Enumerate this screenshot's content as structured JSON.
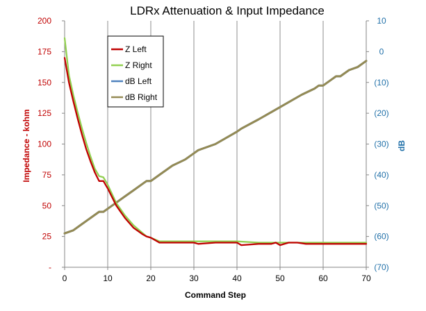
{
  "chart_data": {
    "type": "line",
    "title": "LDRx Attenuation & Input Impedance",
    "xlabel": "Command Step",
    "ylabel_left": "Impedance - kohm",
    "ylabel_right": "dB",
    "xlim": [
      0,
      70
    ],
    "ylim_left": [
      0,
      200
    ],
    "ylim_right": [
      -70,
      10
    ],
    "x_ticks": [
      "0",
      "10",
      "20",
      "30",
      "40",
      "50",
      "60",
      "70"
    ],
    "y_left_ticks": [
      "-",
      "25",
      "50",
      "75",
      "100",
      "125",
      "150",
      "175",
      "200"
    ],
    "y_right_ticks": [
      "(70)",
      "(60)",
      "(50)",
      "(40)",
      "(30)",
      "(20)",
      "(10)",
      "0",
      "10"
    ],
    "grid": "vertical",
    "legend_position": "top-left",
    "colors": {
      "z_left": "#c00000",
      "z_right": "#92d050",
      "db_left": "#4f81bd",
      "db_right": "#948a54",
      "left_axis": "#c00000",
      "right_axis": "#1f6fa8"
    },
    "series": [
      {
        "name": "Z Left",
        "axis": "left",
        "x": [
          0,
          1,
          2,
          3,
          4,
          5,
          6,
          7,
          8,
          9,
          10,
          12,
          14,
          16,
          18,
          19,
          20,
          22,
          25,
          30,
          31,
          35,
          40,
          41,
          45,
          48,
          49,
          50,
          52,
          54,
          56,
          58,
          60,
          65,
          68,
          70
        ],
        "values": [
          170,
          150,
          135,
          121,
          108,
          96,
          86,
          77,
          70,
          70,
          64,
          50,
          40,
          32,
          27,
          25,
          24,
          20,
          20,
          20,
          19,
          20,
          20,
          18,
          19,
          19,
          20,
          18,
          20,
          20,
          19,
          19,
          19,
          19,
          19,
          19
        ]
      },
      {
        "name": "Z Right",
        "axis": "left",
        "x": [
          0,
          1,
          2,
          3,
          4,
          5,
          6,
          7,
          8,
          9,
          10,
          12,
          14,
          16,
          18,
          19,
          20,
          22,
          25,
          30,
          35,
          40,
          45,
          50,
          55,
          60,
          65,
          70
        ],
        "values": [
          186,
          156,
          140,
          126,
          113,
          101,
          90,
          80,
          74,
          73,
          67,
          52,
          42,
          34,
          28,
          25,
          24,
          21,
          21,
          21,
          21,
          21,
          20,
          20,
          20,
          20,
          20,
          20
        ]
      },
      {
        "name": "dB Left",
        "axis": "right",
        "x": [
          0,
          2,
          4,
          6,
          8,
          9,
          10,
          12,
          14,
          16,
          18,
          19,
          20,
          22,
          25,
          28,
          30,
          31,
          35,
          40,
          41,
          45,
          50,
          55,
          58,
          59,
          60,
          62,
          63,
          64,
          66,
          68,
          70
        ],
        "values": [
          -59,
          -58,
          -56,
          -54,
          -52,
          -52,
          -51,
          -49,
          -47,
          -45,
          -43,
          -42,
          -42,
          -40,
          -37,
          -35,
          -33,
          -32,
          -30,
          -26,
          -25,
          -22,
          -18,
          -14,
          -12,
          -11,
          -11,
          -9,
          -8,
          -8,
          -6,
          -5,
          -3
        ]
      },
      {
        "name": "dB Right",
        "axis": "right",
        "x": [
          0,
          2,
          4,
          6,
          8,
          9,
          10,
          12,
          14,
          16,
          18,
          19,
          20,
          22,
          25,
          28,
          30,
          31,
          35,
          40,
          41,
          45,
          50,
          55,
          58,
          59,
          60,
          62,
          63,
          64,
          66,
          68,
          70
        ],
        "values": [
          -59,
          -58,
          -56,
          -54,
          -52,
          -52,
          -51,
          -49,
          -47,
          -45,
          -43,
          -42,
          -42,
          -40,
          -37,
          -35,
          -33,
          -32,
          -30,
          -26,
          -25,
          -22,
          -18,
          -14,
          -12,
          -11,
          -11,
          -9,
          -8,
          -8,
          -6,
          -5,
          -3
        ]
      }
    ]
  }
}
